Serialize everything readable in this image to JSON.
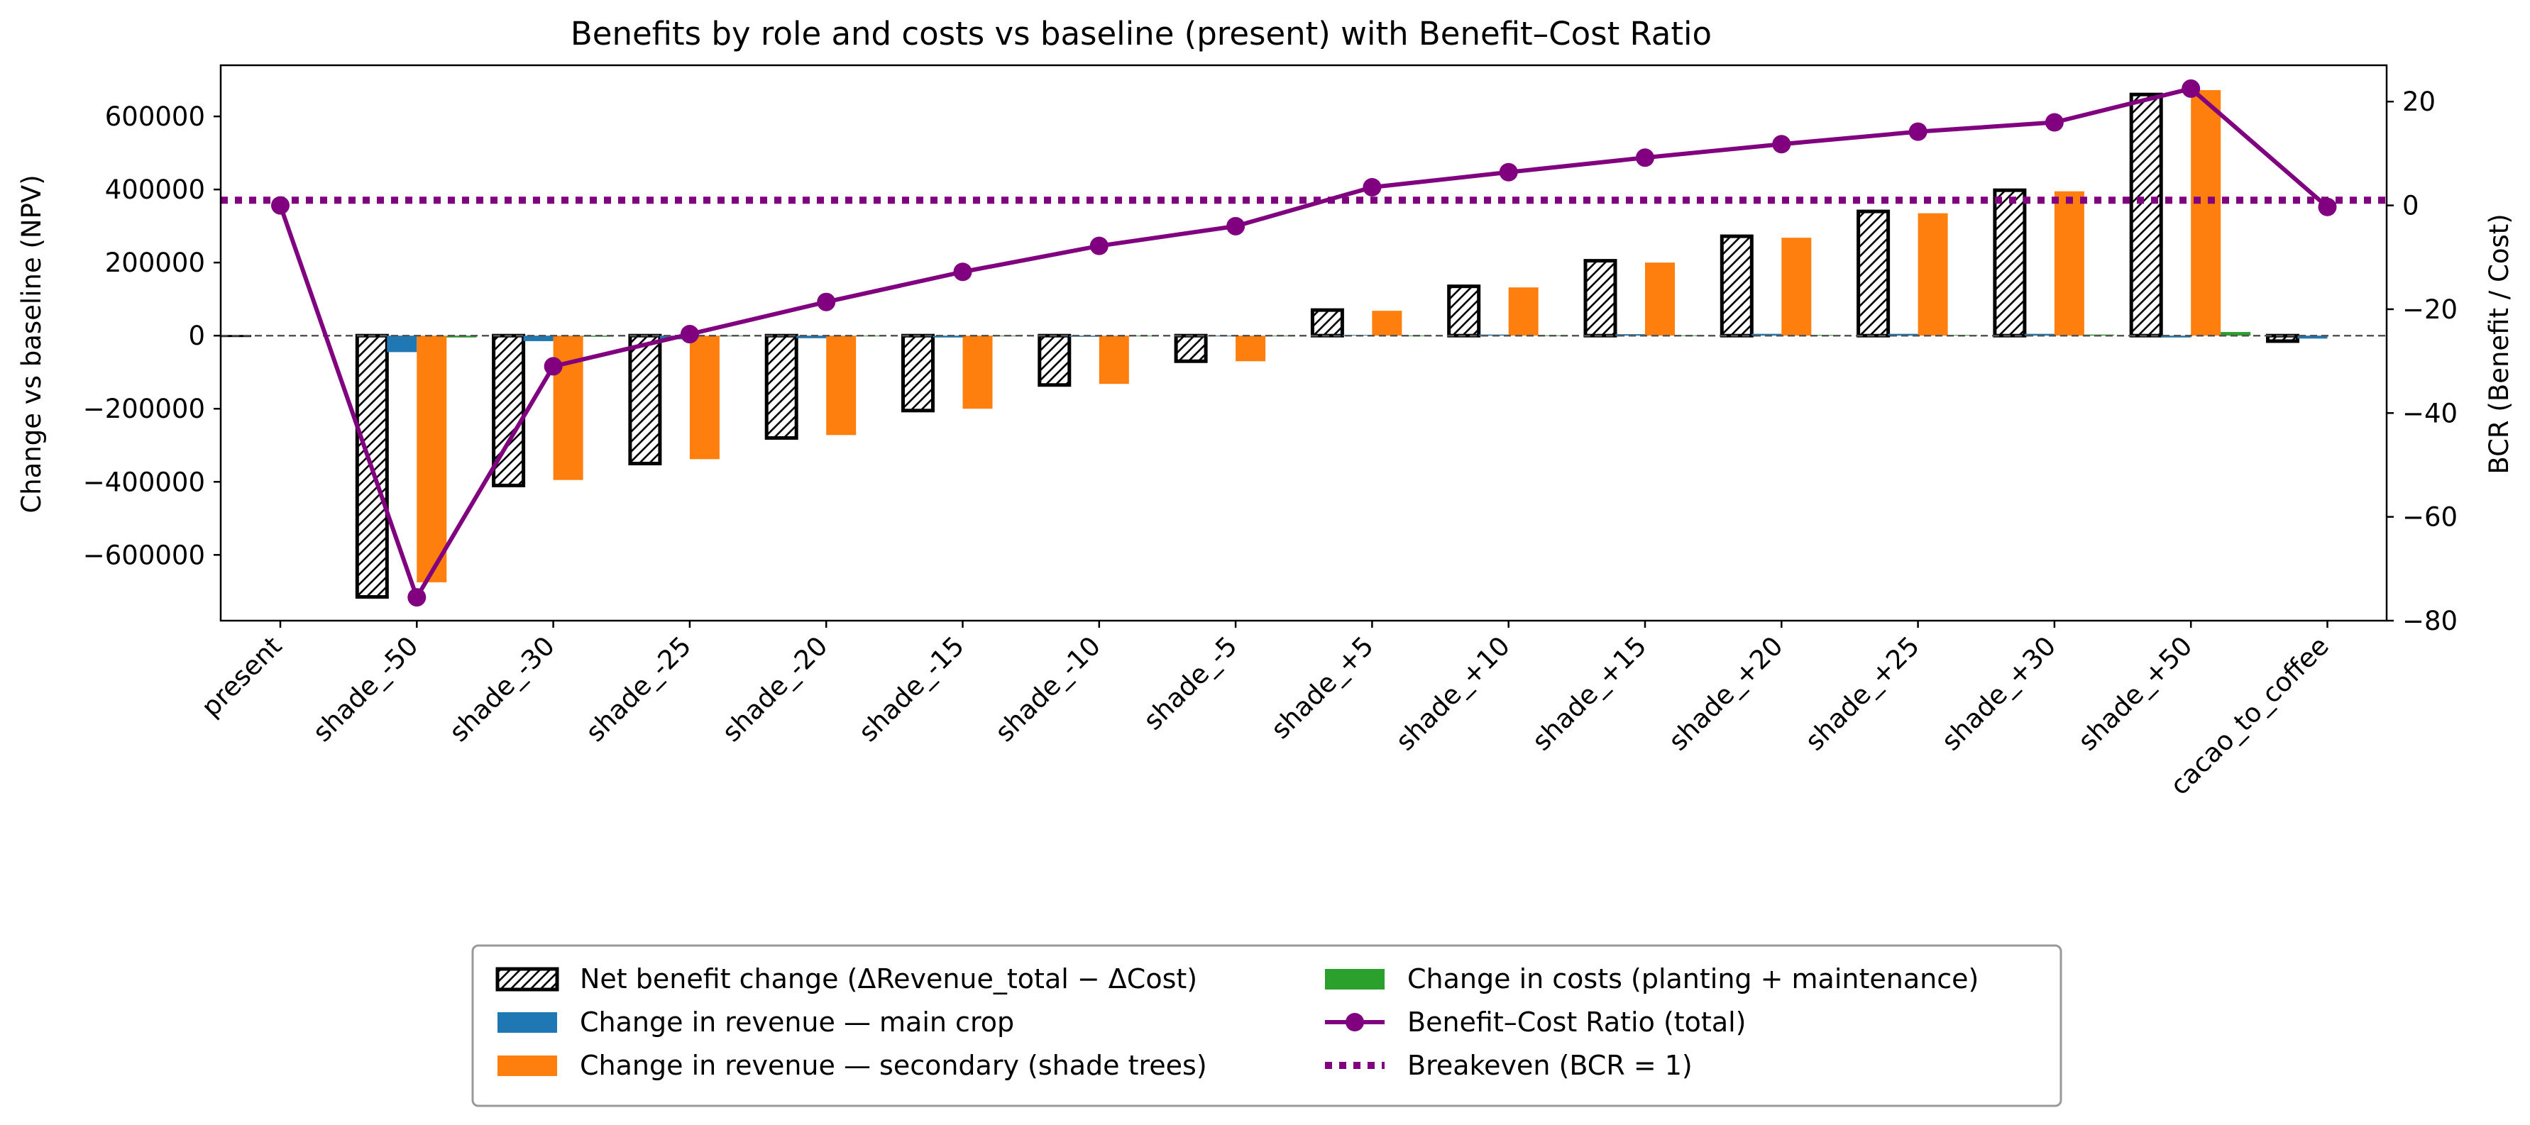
{
  "chart_data": {
    "type": "bar",
    "title": "Benefits by role and costs vs baseline (present) with Benefit–Cost Ratio",
    "ylabel": "Change vs baseline (NPV)",
    "y2label": "BCR (Benefit / Cost)",
    "xlabel": "",
    "ylim": [
      -780000,
      740000
    ],
    "y2lim": [
      -80,
      27
    ],
    "yticks": [
      -600000,
      -400000,
      -200000,
      0,
      200000,
      400000,
      600000
    ],
    "y2ticks": [
      -80,
      -60,
      -40,
      -20,
      0,
      20
    ],
    "categories": [
      "present",
      "shade_-50",
      "shade_-30",
      "shade_-25",
      "shade_-20",
      "shade_-15",
      "shade_-10",
      "shade_-5",
      "shade_+5",
      "shade_+10",
      "shade_+15",
      "shade_+20",
      "shade_+25",
      "shade_+30",
      "shade_+50",
      "cacao_to_coffee"
    ],
    "series": [
      {
        "name": "Net benefit change (ΔRevenue_total − ΔCost)",
        "kind": "bar",
        "color": "#ffffff",
        "edge": "#000000",
        "hatch": true,
        "values": [
          0,
          -715000,
          -410000,
          -350000,
          -280000,
          -205000,
          -135000,
          -70000,
          70000,
          135000,
          205000,
          272000,
          340000,
          398000,
          660000,
          -15000
        ]
      },
      {
        "name": "Change in revenue — main crop",
        "kind": "bar",
        "color": "#1f77b4",
        "values": [
          0,
          -45000,
          -15000,
          -10000,
          -7000,
          -5000,
          -3000,
          -2000,
          2000,
          3000,
          4000,
          5000,
          5000,
          5000,
          -5000,
          -8000
        ]
      },
      {
        "name": "Change in revenue — secondary (shade trees)",
        "kind": "bar",
        "color": "#ff7f0e",
        "values": [
          0,
          -675000,
          -395000,
          -338000,
          -272000,
          -200000,
          -132000,
          -70000,
          68000,
          132000,
          200000,
          268000,
          335000,
          395000,
          672000,
          0
        ]
      },
      {
        "name": "Change in costs (planting + maintenance)",
        "kind": "bar",
        "color": "#2ca02c",
        "values": [
          0,
          -5000,
          -3000,
          -2000,
          -2000,
          -1000,
          -1000,
          -500,
          500,
          1000,
          1000,
          2000,
          2000,
          3000,
          10000,
          0
        ]
      },
      {
        "name": "Benefit–Cost Ratio (total)",
        "kind": "line",
        "axis": "right",
        "color": "#800080",
        "values": [
          0,
          -75.5,
          -31,
          -24.8,
          -18.6,
          -12.8,
          -7.8,
          -4,
          3.5,
          6.4,
          9.2,
          11.8,
          14.2,
          16,
          22.5,
          -0.3
        ]
      },
      {
        "name": "Breakeven (BCR = 1)",
        "kind": "hline",
        "axis": "right",
        "color": "#800080",
        "value": 1
      }
    ],
    "legend_position": "bottom-center",
    "grid": false
  }
}
